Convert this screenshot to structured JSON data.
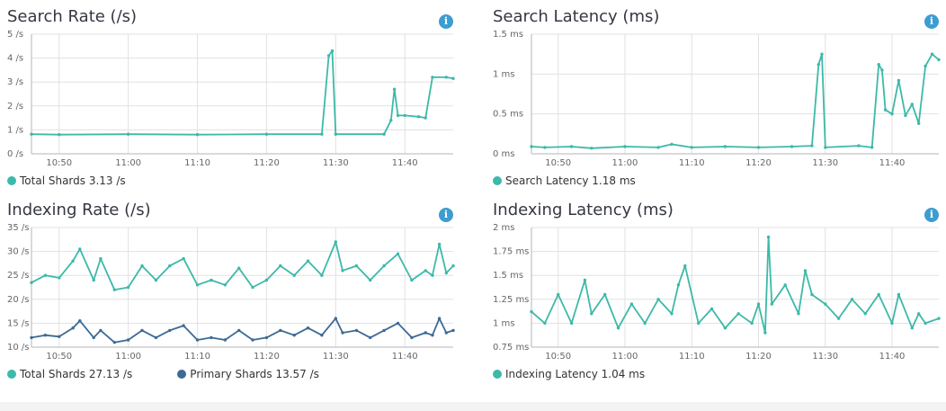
{
  "colors": {
    "teal": "#3cb9a9",
    "navy": "#3c6a96",
    "grid": "#e1e1e1",
    "axis": "#b5b5b5",
    "info": "#3d9dd0"
  },
  "chart_data": [
    {
      "type": "line",
      "title": "Search Rate (/s)",
      "info_icon": "info-circle-icon",
      "x_ticks": [
        "10:50",
        "11:00",
        "11:10",
        "11:20",
        "11:30",
        "11:40"
      ],
      "y_ticks": [
        "0 /s",
        "1 /s",
        "2 /s",
        "3 /s",
        "4 /s",
        "5 /s"
      ],
      "ylim": [
        0,
        5
      ],
      "xlim": [
        "10:46",
        "11:47"
      ],
      "grid": true,
      "legend_position": "bottom-left",
      "legend": [
        "Total Shards 3.13 /s"
      ],
      "series": [
        {
          "color": "#3cb9a9",
          "x": [
            "10:46",
            "10:50",
            "11:00",
            "11:10",
            "11:20",
            "11:28",
            "11:29",
            "11:29:30",
            "11:30",
            "11:37",
            "11:38",
            "11:38:30",
            "11:39",
            "11:40",
            "11:42",
            "11:43",
            "11:44",
            "11:46",
            "11:47"
          ],
          "y": [
            0.82,
            0.8,
            0.82,
            0.8,
            0.82,
            0.82,
            4.1,
            4.3,
            0.82,
            0.82,
            1.4,
            2.7,
            1.6,
            1.6,
            1.55,
            1.5,
            3.2,
            3.2,
            3.15
          ]
        }
      ]
    },
    {
      "type": "line",
      "title": "Search Latency (ms)",
      "info_icon": "info-circle-icon",
      "x_ticks": [
        "10:50",
        "11:00",
        "11:10",
        "11:20",
        "11:30",
        "11:40"
      ],
      "y_ticks": [
        "0 ms",
        "0.5 ms",
        "1 ms",
        "1.5 ms"
      ],
      "ylim": [
        0,
        1.5
      ],
      "xlim": [
        "10:46",
        "11:47"
      ],
      "grid": true,
      "legend_position": "bottom-left",
      "legend": [
        "Search Latency 1.18 ms"
      ],
      "series": [
        {
          "color": "#3cb9a9",
          "x": [
            "10:46",
            "10:48",
            "10:52",
            "10:55",
            "11:00",
            "11:05",
            "11:07",
            "11:10",
            "11:15",
            "11:20",
            "11:25",
            "11:28",
            "11:29",
            "11:29:30",
            "11:30",
            "11:35",
            "11:37",
            "11:38",
            "11:38:30",
            "11:39",
            "11:40",
            "11:41",
            "11:42",
            "11:43",
            "11:44",
            "11:45",
            "11:46",
            "11:47"
          ],
          "y": [
            0.09,
            0.08,
            0.09,
            0.07,
            0.09,
            0.08,
            0.12,
            0.08,
            0.09,
            0.08,
            0.09,
            0.1,
            1.12,
            1.25,
            0.08,
            0.1,
            0.08,
            1.12,
            1.05,
            0.55,
            0.5,
            0.92,
            0.48,
            0.62,
            0.38,
            1.1,
            1.25,
            1.18
          ]
        }
      ]
    },
    {
      "type": "line",
      "title": "Indexing Rate (/s)",
      "info_icon": "info-circle-icon",
      "x_ticks": [
        "10:50",
        "11:00",
        "11:10",
        "11:20",
        "11:30",
        "11:40"
      ],
      "y_ticks": [
        "10 /s",
        "15 /s",
        "20 /s",
        "25 /s",
        "30 /s",
        "35 /s"
      ],
      "ylim": [
        10,
        35
      ],
      "xlim": [
        "10:46",
        "11:47"
      ],
      "grid": true,
      "legend_position": "bottom-left",
      "legend": [
        "Total Shards 27.13 /s",
        "Primary Shards 13.57 /s"
      ],
      "series": [
        {
          "color": "#3cb9a9",
          "x": [
            "10:46",
            "10:48",
            "10:50",
            "10:52",
            "10:53",
            "10:55",
            "10:56",
            "10:58",
            "11:00",
            "11:02",
            "11:04",
            "11:06",
            "11:08",
            "11:10",
            "11:12",
            "11:14",
            "11:16",
            "11:18",
            "11:20",
            "11:22",
            "11:24",
            "11:26",
            "11:28",
            "11:30",
            "11:31",
            "11:33",
            "11:35",
            "11:37",
            "11:39",
            "11:41",
            "11:43",
            "11:44",
            "11:45",
            "11:46",
            "11:47"
          ],
          "y": [
            23.5,
            25,
            24.5,
            28,
            30.5,
            24,
            28.5,
            22,
            22.5,
            27,
            24,
            27,
            28.5,
            23,
            24,
            23,
            26.5,
            22.5,
            24,
            27,
            25,
            28,
            25,
            32,
            26,
            27,
            24,
            27,
            29.5,
            24,
            26,
            25,
            31.5,
            25.5,
            27
          ]
        },
        {
          "color": "#3c6a96",
          "x": [
            "10:46",
            "10:48",
            "10:50",
            "10:52",
            "10:53",
            "10:55",
            "10:56",
            "10:58",
            "11:00",
            "11:02",
            "11:04",
            "11:06",
            "11:08",
            "11:10",
            "11:12",
            "11:14",
            "11:16",
            "11:18",
            "11:20",
            "11:22",
            "11:24",
            "11:26",
            "11:28",
            "11:30",
            "11:31",
            "11:33",
            "11:35",
            "11:37",
            "11:39",
            "11:41",
            "11:43",
            "11:44",
            "11:45",
            "11:46",
            "11:47"
          ],
          "y": [
            12,
            12.5,
            12.2,
            14,
            15.5,
            12,
            13.5,
            11,
            11.5,
            13.5,
            12,
            13.5,
            14.5,
            11.5,
            12,
            11.5,
            13.5,
            11.5,
            12,
            13.5,
            12.5,
            14,
            12.5,
            16,
            13,
            13.5,
            12,
            13.5,
            15,
            12,
            13,
            12.5,
            16,
            13,
            13.5
          ]
        }
      ]
    },
    {
      "type": "line",
      "title": "Indexing Latency (ms)",
      "info_icon": "info-circle-icon",
      "x_ticks": [
        "10:50",
        "11:00",
        "11:10",
        "11:20",
        "11:30",
        "11:40"
      ],
      "y_ticks": [
        "0.75 ms",
        "1 ms",
        "1.25 ms",
        "1.5 ms",
        "1.75 ms",
        "2 ms"
      ],
      "ylim": [
        0.75,
        2
      ],
      "xlim": [
        "10:46",
        "11:47"
      ],
      "grid": true,
      "legend_position": "bottom-left",
      "legend": [
        "Indexing Latency 1.04 ms"
      ],
      "series": [
        {
          "color": "#3cb9a9",
          "x": [
            "10:46",
            "10:48",
            "10:50",
            "10:52",
            "10:54",
            "10:55",
            "10:57",
            "10:59",
            "11:01",
            "11:03",
            "11:05",
            "11:07",
            "11:08",
            "11:09",
            "11:11",
            "11:13",
            "11:15",
            "11:17",
            "11:19",
            "11:20",
            "11:21",
            "11:21:30",
            "11:22",
            "11:24",
            "11:26",
            "11:27",
            "11:28",
            "11:30",
            "11:32",
            "11:34",
            "11:36",
            "11:38",
            "11:40",
            "11:41",
            "11:43",
            "11:44",
            "11:45",
            "11:47"
          ],
          "y": [
            1.12,
            1.0,
            1.3,
            1.0,
            1.45,
            1.1,
            1.3,
            0.95,
            1.2,
            1.0,
            1.25,
            1.1,
            1.4,
            1.6,
            1.0,
            1.15,
            0.95,
            1.1,
            1.0,
            1.2,
            0.9,
            1.9,
            1.2,
            1.4,
            1.1,
            1.55,
            1.3,
            1.2,
            1.05,
            1.25,
            1.1,
            1.3,
            1.0,
            1.3,
            0.95,
            1.1,
            1.0,
            1.05
          ]
        }
      ]
    }
  ]
}
